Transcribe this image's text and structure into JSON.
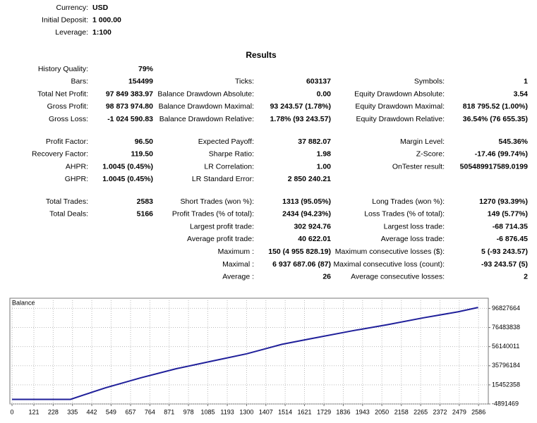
{
  "settings": [
    [
      "Currency:",
      "USD"
    ],
    [
      "Initial Deposit:",
      "1 000.00"
    ],
    [
      "Leverage:",
      "1:100"
    ]
  ],
  "results_title": "Results",
  "sections": [
    {
      "rows": [
        [
          [
            "History Quality:",
            "79%"
          ],
          null,
          null
        ],
        [
          [
            "Bars:",
            "154499"
          ],
          [
            "Ticks:",
            "603137"
          ],
          [
            "Symbols:",
            "1"
          ]
        ],
        [
          [
            "Total Net Profit:",
            "97 849 383.97"
          ],
          [
            "Balance Drawdown Absolute:",
            "0.00"
          ],
          [
            "Equity Drawdown Absolute:",
            "3.54"
          ]
        ],
        [
          [
            "Gross Profit:",
            "98 873 974.80"
          ],
          [
            "Balance Drawdown Maximal:",
            "93 243.57 (1.78%)"
          ],
          [
            "Equity Drawdown Maximal:",
            "818 795.52 (1.00%)"
          ]
        ],
        [
          [
            "Gross Loss:",
            "-1 024 590.83"
          ],
          [
            "Balance Drawdown Relative:",
            "1.78% (93 243.57)"
          ],
          [
            "Equity Drawdown Relative:",
            "36.54% (76 655.35)"
          ]
        ]
      ]
    },
    {
      "rows": [
        [
          [
            "Profit Factor:",
            "96.50"
          ],
          [
            "Expected Payoff:",
            "37 882.07"
          ],
          [
            "Margin Level:",
            "545.36%"
          ]
        ],
        [
          [
            "Recovery Factor:",
            "119.50"
          ],
          [
            "Sharpe Ratio:",
            "1.98"
          ],
          [
            "Z-Score:",
            "-17.46 (99.74%)"
          ]
        ],
        [
          [
            "AHPR:",
            "1.0045 (0.45%)"
          ],
          [
            "LR Correlation:",
            "1.00"
          ],
          [
            "OnTester result:",
            "505489917589.0199"
          ]
        ],
        [
          [
            "GHPR:",
            "1.0045 (0.45%)"
          ],
          [
            "LR Standard Error:",
            "2 850 240.21"
          ],
          null
        ]
      ]
    },
    {
      "rows": [
        [
          [
            "Total Trades:",
            "2583"
          ],
          [
            "Short Trades (won %):",
            "1313 (95.05%)"
          ],
          [
            "Long Trades (won %):",
            "1270 (93.39%)"
          ]
        ],
        [
          [
            "Total Deals:",
            "5166"
          ],
          [
            "Profit Trades (% of total):",
            "2434 (94.23%)"
          ],
          [
            "Loss Trades (% of total):",
            "149 (5.77%)"
          ]
        ],
        [
          null,
          [
            "Largest profit trade:",
            "302 924.76"
          ],
          [
            "Largest loss trade:",
            "-68 714.35"
          ]
        ],
        [
          null,
          [
            "Average profit trade:",
            "40 622.01"
          ],
          [
            "Average loss trade:",
            "-6 876.45"
          ]
        ],
        [
          null,
          [
            "Maximum :",
            "150 (4 955 828.19)"
          ],
          [
            "Maximum consecutive losses ($):",
            "5 (-93 243.57)"
          ]
        ],
        [
          null,
          [
            "Maximal :",
            "6 937 687.06 (87)"
          ],
          [
            "Maximal consecutive loss (count):",
            "-93 243.57 (5)"
          ]
        ],
        [
          null,
          [
            "Average :",
            "26"
          ],
          [
            "Average consecutive losses:",
            "2"
          ]
        ]
      ]
    }
  ],
  "chart_data": {
    "type": "line",
    "title": "Balance",
    "color": "#1f1f9a",
    "grid": true,
    "x": [
      0,
      324,
      402,
      520,
      715,
      910,
      1105,
      1301,
      1496,
      1652,
      1887,
      2082,
      2277,
      2473,
      2583
    ],
    "values": [
      0,
      0,
      5000000,
      12400000,
      23000000,
      32600000,
      40600000,
      48500000,
      58600000,
      64400000,
      73000000,
      79500000,
      86700000,
      93200000,
      97800000
    ],
    "xlim": [
      -12,
      2640
    ],
    "xticks": [
      0,
      121,
      228,
      335,
      442,
      549,
      657,
      764,
      871,
      978,
      1085,
      1193,
      1300,
      1407,
      1514,
      1621,
      1729,
      1836,
      1943,
      2050,
      2158,
      2265,
      2372,
      2479,
      2586
    ],
    "ylim": [
      -4891469,
      107650000
    ],
    "yticks": [
      -4891469,
      15452358,
      35796184,
      56140011,
      76483838,
      96827664
    ]
  }
}
